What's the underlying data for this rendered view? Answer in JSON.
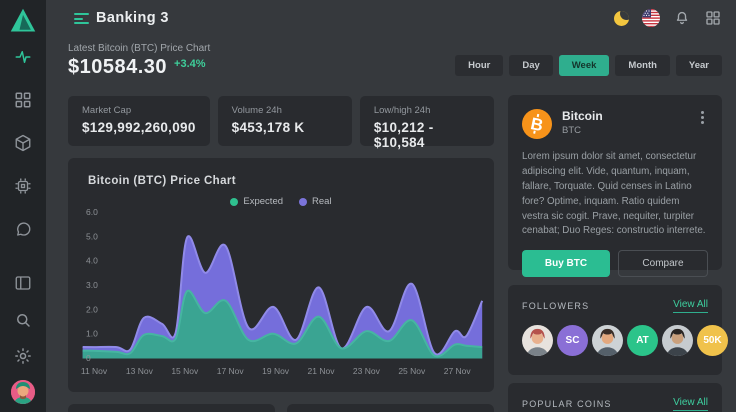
{
  "topbar": {
    "title": "Banking 3",
    "icons": [
      "dark-mode-moon",
      "language-us-flag",
      "notifications-bell",
      "apps-grid"
    ]
  },
  "sidebar": {
    "icons": [
      "logo-triangle",
      "activity",
      "dashboard-grid",
      "package-box",
      "cpu-chip",
      "chat-bubble",
      "layout-columns",
      "search",
      "settings-gear",
      "user-avatar"
    ]
  },
  "header": {
    "subtitle": "Latest Bitcoin (BTC) Price Chart",
    "price": "$10584.30",
    "change": "+3.4%"
  },
  "ranges": [
    {
      "label": "Hour",
      "active": false
    },
    {
      "label": "Day",
      "active": false
    },
    {
      "label": "Week",
      "active": true
    },
    {
      "label": "Month",
      "active": false
    },
    {
      "label": "Year",
      "active": false
    }
  ],
  "stats": [
    {
      "label": "Market Cap",
      "value": "$129,992,260,090"
    },
    {
      "label": "Volume 24h",
      "value": "$453,178 K"
    },
    {
      "label": "Low/high 24h",
      "value": "$10,212 - $10,584"
    }
  ],
  "chart_data": {
    "type": "area",
    "title": "Bitcoin (BTC) Price Chart",
    "xlabel": "",
    "ylabel": "",
    "ylim": [
      0,
      6
    ],
    "grid": false,
    "legend_position": "top-center",
    "x_unit": "day of November",
    "x_ticks": [
      {
        "day": 11,
        "label": "11 Nov"
      },
      {
        "day": 13,
        "label": "13 Nov"
      },
      {
        "day": 15,
        "label": "15 Nov"
      },
      {
        "day": 17,
        "label": "17 Nov"
      },
      {
        "day": 19,
        "label": "19 Nov"
      },
      {
        "day": 21,
        "label": "21 Nov"
      },
      {
        "day": 23,
        "label": "23 Nov"
      },
      {
        "day": 25,
        "label": "25 Nov"
      },
      {
        "day": 27,
        "label": "27 Nov"
      }
    ],
    "y_ticks": [
      {
        "v": 0,
        "label": "0"
      },
      {
        "v": 1,
        "label": "1.0"
      },
      {
        "v": 2,
        "label": "2.0"
      },
      {
        "v": 3,
        "label": "3.0"
      },
      {
        "v": 4,
        "label": "4.0"
      },
      {
        "v": 5,
        "label": "5.0"
      },
      {
        "v": 6,
        "label": "6.0"
      }
    ],
    "legend": [
      {
        "label": "Expected",
        "color": "#2fc08f"
      },
      {
        "label": "Real",
        "color": "#7b74da"
      }
    ],
    "series": [
      {
        "name": "Real",
        "color": "#756edb",
        "stroke": "#908ae8",
        "points": [
          [
            10.5,
            0.45
          ],
          [
            11,
            0.45
          ],
          [
            12,
            0.45
          ],
          [
            12.6,
            0.35
          ],
          [
            13.2,
            1.65
          ],
          [
            14,
            1.4
          ],
          [
            14.6,
            1.05
          ],
          [
            15.1,
            4.95
          ],
          [
            15.9,
            3.5
          ],
          [
            16.8,
            4.6
          ],
          [
            17.8,
            1.25
          ],
          [
            18.9,
            2.1
          ],
          [
            19.9,
            0.75
          ],
          [
            20.9,
            2.9
          ],
          [
            21.9,
            0.4
          ],
          [
            23,
            2.1
          ],
          [
            24,
            1.1
          ],
          [
            25,
            3.05
          ],
          [
            26,
            0.2
          ],
          [
            26.9,
            1.1
          ],
          [
            27.4,
            0.9
          ],
          [
            28.1,
            2.35
          ]
        ]
      },
      {
        "name": "Expected",
        "color": "#3aa492",
        "stroke": "#46b5a1",
        "points": [
          [
            10.5,
            0.3
          ],
          [
            11,
            0.3
          ],
          [
            12,
            0.25
          ],
          [
            12.6,
            0.2
          ],
          [
            13.2,
            0.95
          ],
          [
            14,
            0.9
          ],
          [
            14.6,
            0.8
          ],
          [
            15.1,
            2.75
          ],
          [
            15.9,
            1.85
          ],
          [
            16.8,
            2.35
          ],
          [
            17.8,
            0.75
          ],
          [
            18.9,
            1.0
          ],
          [
            19.9,
            0.6
          ],
          [
            20.9,
            1.7
          ],
          [
            21.9,
            0.4
          ],
          [
            23,
            1.1
          ],
          [
            24,
            0.7
          ],
          [
            25,
            1.55
          ],
          [
            26,
            0.1
          ],
          [
            26.9,
            0.55
          ],
          [
            27.4,
            0.5
          ],
          [
            28.1,
            0.45
          ]
        ]
      }
    ]
  },
  "coin_card": {
    "name": "Bitcoin",
    "symbol": "BTC",
    "icon_color": "#f7931a",
    "description": "Lorem ipsum dolor sit amet, consectetur adipiscing elit. Vide, quantum, inquam, fallare, Torquate. Quid censes in Latino fore? Optime, inquam. Ratio quidem vestra sic cogit. Prave, nequiter, turpiter cenabat; Duo Reges: constructio interrete.",
    "buy_label": "Buy BTC",
    "compare_label": "Compare"
  },
  "followers": {
    "title": "FOLLOWERS",
    "view_all": "View All",
    "avatars": [
      {
        "type": "photo",
        "bg": "#e7e2dd",
        "hair": "#b5524c",
        "skin": "#e8b08d",
        "shirt": "#7a8289"
      },
      {
        "type": "badge",
        "text": "SC",
        "color": "#8a6fd6"
      },
      {
        "type": "photo",
        "bg": "#cdd2d5",
        "hair": "#3a2d26",
        "skin": "#e3a87e",
        "shirt": "#55606a"
      },
      {
        "type": "badge",
        "text": "AT",
        "color": "#2bc48a"
      },
      {
        "type": "photo",
        "bg": "#c6cbcf",
        "hair": "#2a2522",
        "skin": "#caa07c",
        "shirt": "#3c434a"
      },
      {
        "type": "badge",
        "text": "50K",
        "color": "#f0c24b"
      }
    ]
  },
  "popular_coins": {
    "title": "POPULAR COINS",
    "view_all": "View All"
  },
  "colors": {
    "accent": "#2bbd92",
    "background": "#36393d",
    "sidebar": "#212427",
    "card": "#292b2f"
  }
}
